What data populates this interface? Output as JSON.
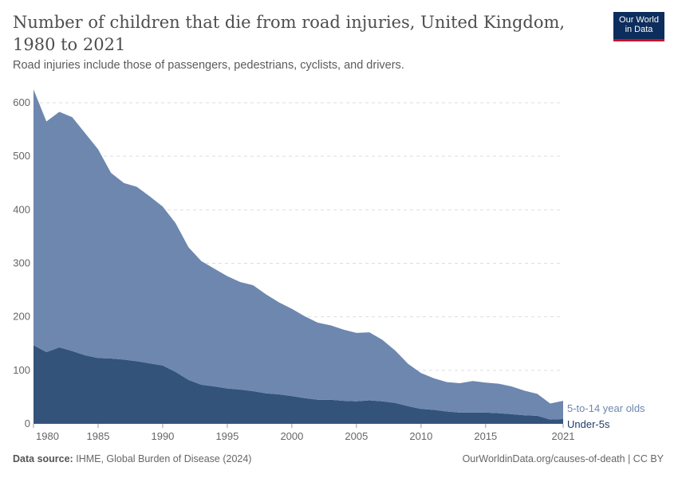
{
  "header": {
    "title": "Number of children that die from road injuries, United Kingdom, 1980 to 2021",
    "subtitle": "Road injuries include those of passengers, pedestrians, cyclists, and drivers.",
    "logo": "Our World in Data"
  },
  "footer": {
    "source_label": "Data source:",
    "source": "IHME, Global Burden of Disease (2024)",
    "link": "OurWorldinData.org/causes-of-death | CC BY"
  },
  "chart_data": {
    "type": "area",
    "stacked": true,
    "grid": true,
    "legend_placement": "right-inline",
    "xlim": [
      1980,
      2021
    ],
    "ylim": [
      0,
      600
    ],
    "xticks": [
      "1980",
      "1985",
      "1990",
      "1995",
      "2000",
      "2005",
      "2010",
      "2015",
      "2021"
    ],
    "yticks": [
      "0",
      "100",
      "200",
      "300",
      "400",
      "500",
      "600"
    ],
    "x": [
      1980,
      1981,
      1982,
      1983,
      1984,
      1985,
      1986,
      1987,
      1988,
      1989,
      1990,
      1991,
      1992,
      1993,
      1994,
      1995,
      1996,
      1997,
      1998,
      1999,
      2000,
      2001,
      2002,
      2003,
      2004,
      2005,
      2006,
      2007,
      2008,
      2009,
      2010,
      2011,
      2012,
      2013,
      2014,
      2015,
      2016,
      2017,
      2018,
      2019,
      2020,
      2021
    ],
    "series": [
      {
        "name": "Under-5s",
        "color": "#33537a",
        "values": [
          147,
          134,
          143,
          136,
          128,
          123,
          122,
          120,
          117,
          113,
          109,
          97,
          82,
          73,
          70,
          66,
          64,
          61,
          57,
          55,
          52,
          48,
          45,
          45,
          43,
          42,
          44,
          42,
          39,
          33,
          28,
          26,
          23,
          21,
          21,
          21,
          20,
          18,
          16,
          15,
          8,
          9
        ]
      },
      {
        "name": "5-to-14 year olds",
        "color": "#6d87af",
        "values": [
          478,
          431,
          440,
          437,
          415,
          390,
          347,
          330,
          326,
          312,
          297,
          278,
          248,
          231,
          220,
          210,
          201,
          198,
          185,
          172,
          163,
          153,
          144,
          139,
          133,
          128,
          127,
          115,
          98,
          79,
          67,
          59,
          55,
          55,
          59,
          56,
          55,
          52,
          46,
          41,
          30,
          34
        ]
      }
    ]
  }
}
